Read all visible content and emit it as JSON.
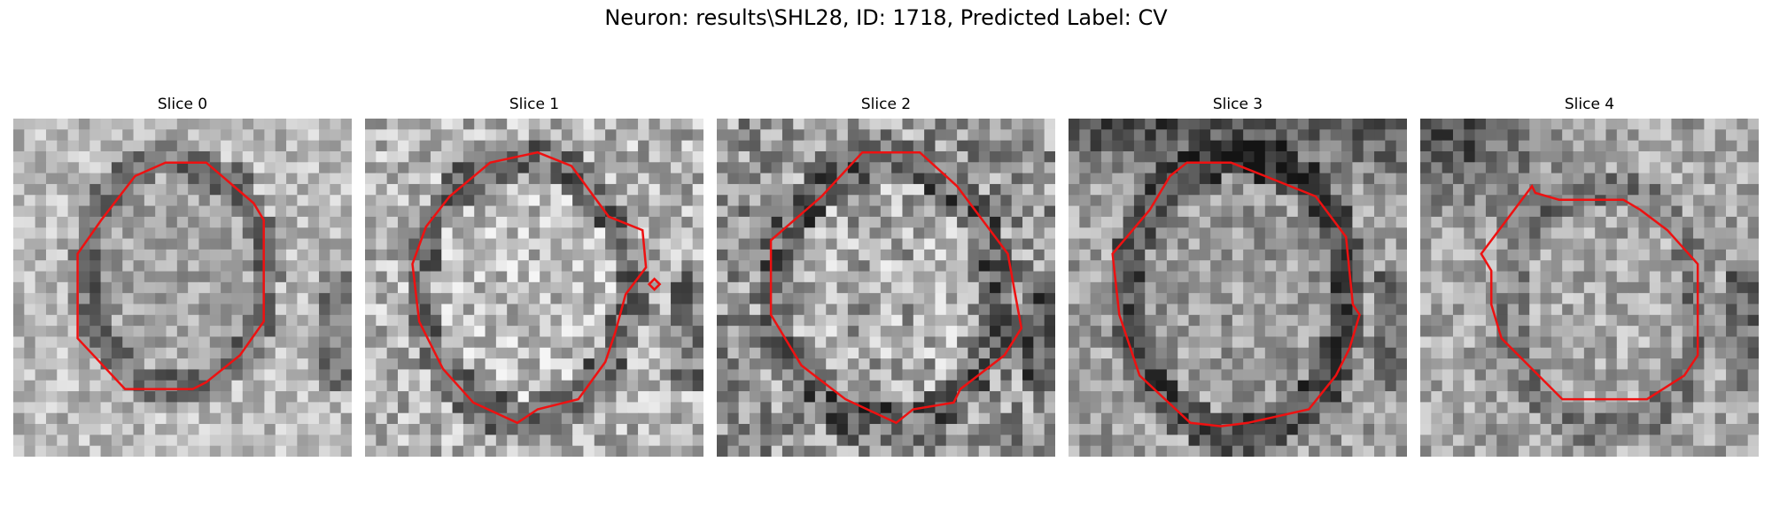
{
  "figure": {
    "title": "Neuron: results\\SHL28, ID: 1718, Predicted Label: CV",
    "contour_color": "#ee1111"
  },
  "slices": [
    {
      "label": "Slice 0"
    },
    {
      "label": "Slice 1"
    },
    {
      "label": "Slice 2"
    },
    {
      "label": "Slice 3"
    },
    {
      "label": "Slice 4"
    }
  ]
}
